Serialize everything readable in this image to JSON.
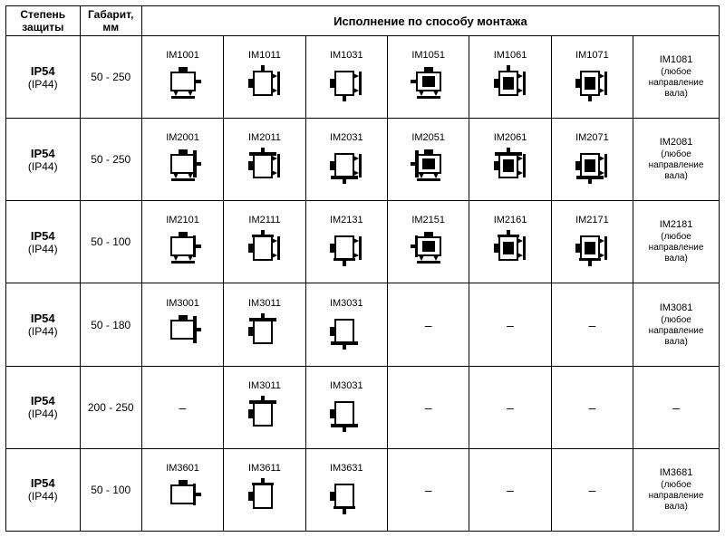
{
  "headers": {
    "protection": "Степень\nзащиты",
    "size": "Габарит,\nмм",
    "mounting": "Исполнение по способу монтажа"
  },
  "any_dir": "(любое\nнаправление\nвала)",
  "dash": "–",
  "rows": [
    {
      "ip_main": "IP54",
      "ip_sub": "(IP44)",
      "size": "50 - 250",
      "variants": [
        {
          "code": "IM1001",
          "icon": "foot-h-r"
        },
        {
          "code": "IM1011",
          "icon": "foot-v-up"
        },
        {
          "code": "IM1031",
          "icon": "foot-v-dn"
        },
        {
          "code": "IM1051",
          "icon": "foot-h-l-sq"
        },
        {
          "code": "IM1061",
          "icon": "foot-v-up-sq"
        },
        {
          "code": "IM1071",
          "icon": "foot-v-dn-sq"
        }
      ],
      "note_code": "IM1081",
      "note_any": true
    },
    {
      "ip_main": "IP54",
      "ip_sub": "(IP44)",
      "size": "50 - 250",
      "variants": [
        {
          "code": "IM2001",
          "icon": "ff-h-r"
        },
        {
          "code": "IM2011",
          "icon": "ff-v-up"
        },
        {
          "code": "IM2031",
          "icon": "ff-v-dn"
        },
        {
          "code": "IM2051",
          "icon": "ff-h-l-sq"
        },
        {
          "code": "IM2061",
          "icon": "ff-v-up-sq"
        },
        {
          "code": "IM2071",
          "icon": "ff-v-dn-sq"
        }
      ],
      "note_code": "IM2081",
      "note_any": true
    },
    {
      "ip_main": "IP54",
      "ip_sub": "(IP44)",
      "size": "50 - 100",
      "variants": [
        {
          "code": "IM2101",
          "icon": "ff2-h-r"
        },
        {
          "code": "IM2111",
          "icon": "ff2-v-up"
        },
        {
          "code": "IM2131",
          "icon": "ff2-v-dn"
        },
        {
          "code": "IM2151",
          "icon": "ff2-h-l-sq"
        },
        {
          "code": "IM2161",
          "icon": "ff2-v-up-sq"
        },
        {
          "code": "IM2171",
          "icon": "ff2-v-dn-sq"
        }
      ],
      "note_code": "IM2181",
      "note_any": true
    },
    {
      "ip_main": "IP54",
      "ip_sub": "(IP44)",
      "size": "50 - 180",
      "variants": [
        {
          "code": "IM3001",
          "icon": "fl-h-r"
        },
        {
          "code": "IM3011",
          "icon": "fl-v-up"
        },
        {
          "code": "IM3031",
          "icon": "fl-v-dn"
        },
        null,
        null,
        null
      ],
      "note_code": "IM3081",
      "note_any": true
    },
    {
      "ip_main": "IP54",
      "ip_sub": "(IP44)",
      "size": "200 - 250",
      "variants": [
        null,
        {
          "code": "IM3011",
          "icon": "fl-v-up"
        },
        {
          "code": "IM3031",
          "icon": "fl-v-dn"
        },
        null,
        null,
        null
      ],
      "note_code": null,
      "note_any": false
    },
    {
      "ip_main": "IP54",
      "ip_sub": "(IP44)",
      "size": "50 - 100",
      "variants": [
        {
          "code": "IM3601",
          "icon": "fl2-h-r"
        },
        {
          "code": "IM3611",
          "icon": "fl2-v-up"
        },
        {
          "code": "IM3631",
          "icon": "fl2-v-dn"
        },
        null,
        null,
        null
      ],
      "note_code": "IM3681",
      "note_any": true
    }
  ],
  "icon_style": {
    "stroke": "#000",
    "stroke_w": 2,
    "body_fill": "#fff",
    "dark": "#000"
  }
}
